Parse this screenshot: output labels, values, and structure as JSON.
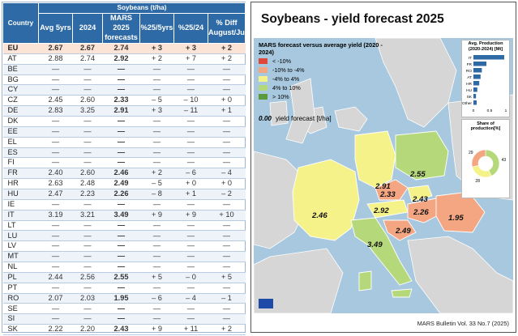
{
  "table": {
    "group_header": "Soybeans (t/ha)",
    "col_country": "Country",
    "col_avg": "Avg 5yrs",
    "col_2024": "2024",
    "col_forecast": "MARS 2025 forecasts",
    "col_pct5": "%25/5yrs",
    "col_pct24": "%25/24",
    "col_diff": "% Diff August/July",
    "rows": [
      {
        "c": "EU",
        "a": "2.67",
        "b": "2.67",
        "f": "2.74",
        "p5": "+ 3",
        "p24": "+ 3",
        "d": "+ 2"
      },
      {
        "c": "AT",
        "a": "2.88",
        "b": "2.74",
        "f": "2.92",
        "p5": "+ 2",
        "p24": "+ 7",
        "d": "+ 2"
      },
      {
        "c": "BE",
        "a": "—",
        "b": "—",
        "f": "—",
        "p5": "—",
        "p24": "—",
        "d": "—"
      },
      {
        "c": "BG",
        "a": "—",
        "b": "—",
        "f": "—",
        "p5": "—",
        "p24": "—",
        "d": "—"
      },
      {
        "c": "CY",
        "a": "—",
        "b": "—",
        "f": "—",
        "p5": "—",
        "p24": "—",
        "d": "—"
      },
      {
        "c": "CZ",
        "a": "2.45",
        "b": "2.60",
        "f": "2.33",
        "p5": "– 5",
        "p24": "– 10",
        "d": "+ 0"
      },
      {
        "c": "DE",
        "a": "2.83",
        "b": "3.25",
        "f": "2.91",
        "p5": "+ 3",
        "p24": "– 11",
        "d": "+ 1"
      },
      {
        "c": "DK",
        "a": "—",
        "b": "—",
        "f": "—",
        "p5": "—",
        "p24": "—",
        "d": "—"
      },
      {
        "c": "EE",
        "a": "—",
        "b": "—",
        "f": "—",
        "p5": "—",
        "p24": "—",
        "d": "—"
      },
      {
        "c": "EL",
        "a": "—",
        "b": "—",
        "f": "—",
        "p5": "—",
        "p24": "—",
        "d": "—"
      },
      {
        "c": "ES",
        "a": "—",
        "b": "—",
        "f": "—",
        "p5": "—",
        "p24": "—",
        "d": "—"
      },
      {
        "c": "FI",
        "a": "—",
        "b": "—",
        "f": "—",
        "p5": "—",
        "p24": "—",
        "d": "—"
      },
      {
        "c": "FR",
        "a": "2.40",
        "b": "2.60",
        "f": "2.46",
        "p5": "+ 2",
        "p24": "– 6",
        "d": "– 4"
      },
      {
        "c": "HR",
        "a": "2.63",
        "b": "2.48",
        "f": "2.49",
        "p5": "– 5",
        "p24": "+ 0",
        "d": "+ 0"
      },
      {
        "c": "HU",
        "a": "2.47",
        "b": "2.23",
        "f": "2.26",
        "p5": "– 8",
        "p24": "+ 1",
        "d": "– 2"
      },
      {
        "c": "IE",
        "a": "—",
        "b": "—",
        "f": "—",
        "p5": "—",
        "p24": "—",
        "d": "—"
      },
      {
        "c": "IT",
        "a": "3.19",
        "b": "3.21",
        "f": "3.49",
        "p5": "+ 9",
        "p24": "+ 9",
        "d": "+ 10"
      },
      {
        "c": "LT",
        "a": "—",
        "b": "—",
        "f": "—",
        "p5": "—",
        "p24": "—",
        "d": "—"
      },
      {
        "c": "LU",
        "a": "—",
        "b": "—",
        "f": "—",
        "p5": "—",
        "p24": "—",
        "d": "—"
      },
      {
        "c": "LV",
        "a": "—",
        "b": "—",
        "f": "—",
        "p5": "—",
        "p24": "—",
        "d": "—"
      },
      {
        "c": "MT",
        "a": "—",
        "b": "—",
        "f": "—",
        "p5": "—",
        "p24": "—",
        "d": "—"
      },
      {
        "c": "NL",
        "a": "—",
        "b": "—",
        "f": "—",
        "p5": "—",
        "p24": "—",
        "d": "—"
      },
      {
        "c": "PL",
        "a": "2.44",
        "b": "2.56",
        "f": "2.55",
        "p5": "+ 5",
        "p24": "– 0",
        "d": "+ 5"
      },
      {
        "c": "PT",
        "a": "—",
        "b": "—",
        "f": "—",
        "p5": "—",
        "p24": "—",
        "d": "—"
      },
      {
        "c": "RO",
        "a": "2.07",
        "b": "2.03",
        "f": "1.95",
        "p5": "– 6",
        "p24": "– 4",
        "d": "– 1"
      },
      {
        "c": "SE",
        "a": "—",
        "b": "—",
        "f": "—",
        "p5": "—",
        "p24": "—",
        "d": "—"
      },
      {
        "c": "SI",
        "a": "—",
        "b": "—",
        "f": "—",
        "p5": "—",
        "p24": "—",
        "d": "—"
      },
      {
        "c": "SK",
        "a": "2.22",
        "b": "2.20",
        "f": "2.43",
        "p5": "+ 9",
        "p24": "+ 11",
        "d": "+ 2"
      }
    ]
  },
  "panel": {
    "title": "Soybeans - yield forecast 2025",
    "legend_title": "MARS forecast versus average yield (2020 - 2024)",
    "legend": [
      {
        "label": "< -10%",
        "color": "#e0463a"
      },
      {
        "label": "-10% to -4%",
        "color": "#f4a582"
      },
      {
        "label": "-4% to 4%",
        "color": "#f5f28a"
      },
      {
        "label": "4% to 10%",
        "color": "#b5d97a"
      },
      {
        "label": "> 10%",
        "color": "#5a9a3a"
      }
    ],
    "fc_value": "0.00",
    "fc_label": "yield forecast [t/ha]",
    "bar_title": "Avg. Production (2020-2024) [Mt]",
    "bar_countries": [
      "IT",
      "FR",
      "RO",
      "AT",
      "HR",
      "HU",
      "SK",
      "Other"
    ],
    "bar_values": [
      0.95,
      0.4,
      0.26,
      0.22,
      0.18,
      0.12,
      0.08,
      0.1
    ],
    "bar_ticks": [
      "0",
      "0.5",
      "1"
    ],
    "pie_title": "Share of production[%]",
    "pie_values": [
      43,
      28,
      29
    ],
    "pie_labels": [
      "43",
      "28",
      "29"
    ],
    "pie_colors": [
      "#b5d97a",
      "#f5f28a",
      "#f4a582"
    ],
    "map_values": [
      "2.91",
      "2.55",
      "2.33",
      "2.43",
      "2.46",
      "2.92",
      "2.26",
      "1.95",
      "2.49",
      "3.49"
    ],
    "bulletin": "MARS Bulletin Vol. 33 No.7 (2025)"
  }
}
